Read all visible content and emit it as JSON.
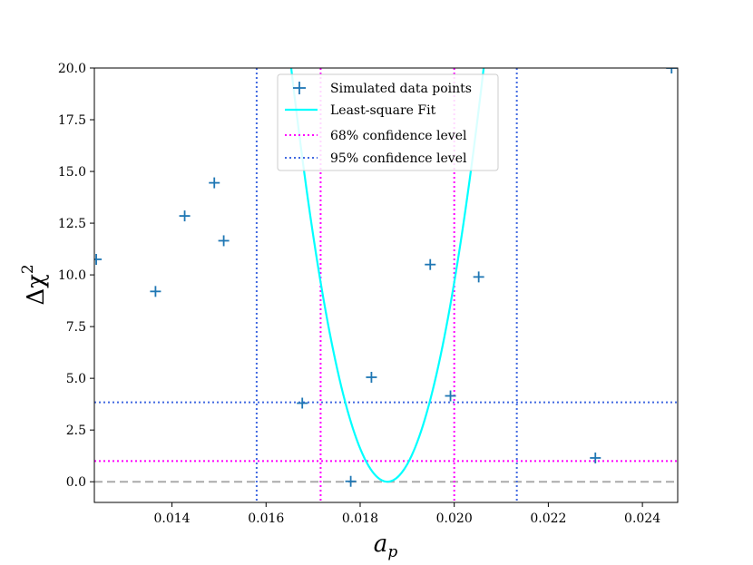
{
  "chart_data": {
    "type": "scatter",
    "xlabel_main": "a",
    "xlabel_sub": "p",
    "ylabel_main": "Δχ",
    "ylabel_sup": "2",
    "xlim": [
      0.01235,
      0.02475
    ],
    "ylim": [
      -1.0,
      20.0
    ],
    "xticks": [
      0.014,
      0.016,
      0.018,
      0.02,
      0.022,
      0.024
    ],
    "xtick_labels": [
      "0.014",
      "0.016",
      "0.018",
      "0.020",
      "0.022",
      "0.024"
    ],
    "yticks": [
      0.0,
      2.5,
      5.0,
      7.5,
      10.0,
      12.5,
      15.0,
      17.5,
      20.0
    ],
    "ytick_labels": [
      "0.0",
      "2.5",
      "5.0",
      "7.5",
      "10.0",
      "12.5",
      "15.0",
      "17.5",
      "20.0"
    ],
    "points": {
      "name": "Simulated data points",
      "color": "#1f77b4",
      "x": [
        0.01239,
        0.01365,
        0.01427,
        0.0149,
        0.0151,
        0.01677,
        0.0178,
        0.01824,
        0.01949,
        0.01992,
        0.02052,
        0.023,
        0.02462
      ],
      "y": [
        10.75,
        9.2,
        12.85,
        14.45,
        11.65,
        3.8,
        0.02,
        5.05,
        10.5,
        4.15,
        9.9,
        1.15,
        20.0
      ]
    },
    "fit": {
      "name": "Least-square Fit",
      "color": "#00ffff",
      "vertex_x": 0.01858,
      "curvature": 4780000
    },
    "baseline": {
      "y": 0.0,
      "color": "#aaaaaa"
    },
    "confidence_68": {
      "name": "68% confidence level",
      "color": "#ff00ff",
      "delta_chi2": 1.0,
      "x_bounds": [
        0.01716,
        0.02
      ]
    },
    "confidence_95": {
      "name": "95% confidence level",
      "color": "#4169e1",
      "delta_chi2": 3.84,
      "x_bounds": [
        0.0158,
        0.02133
      ]
    },
    "legend_position": "top-center"
  }
}
